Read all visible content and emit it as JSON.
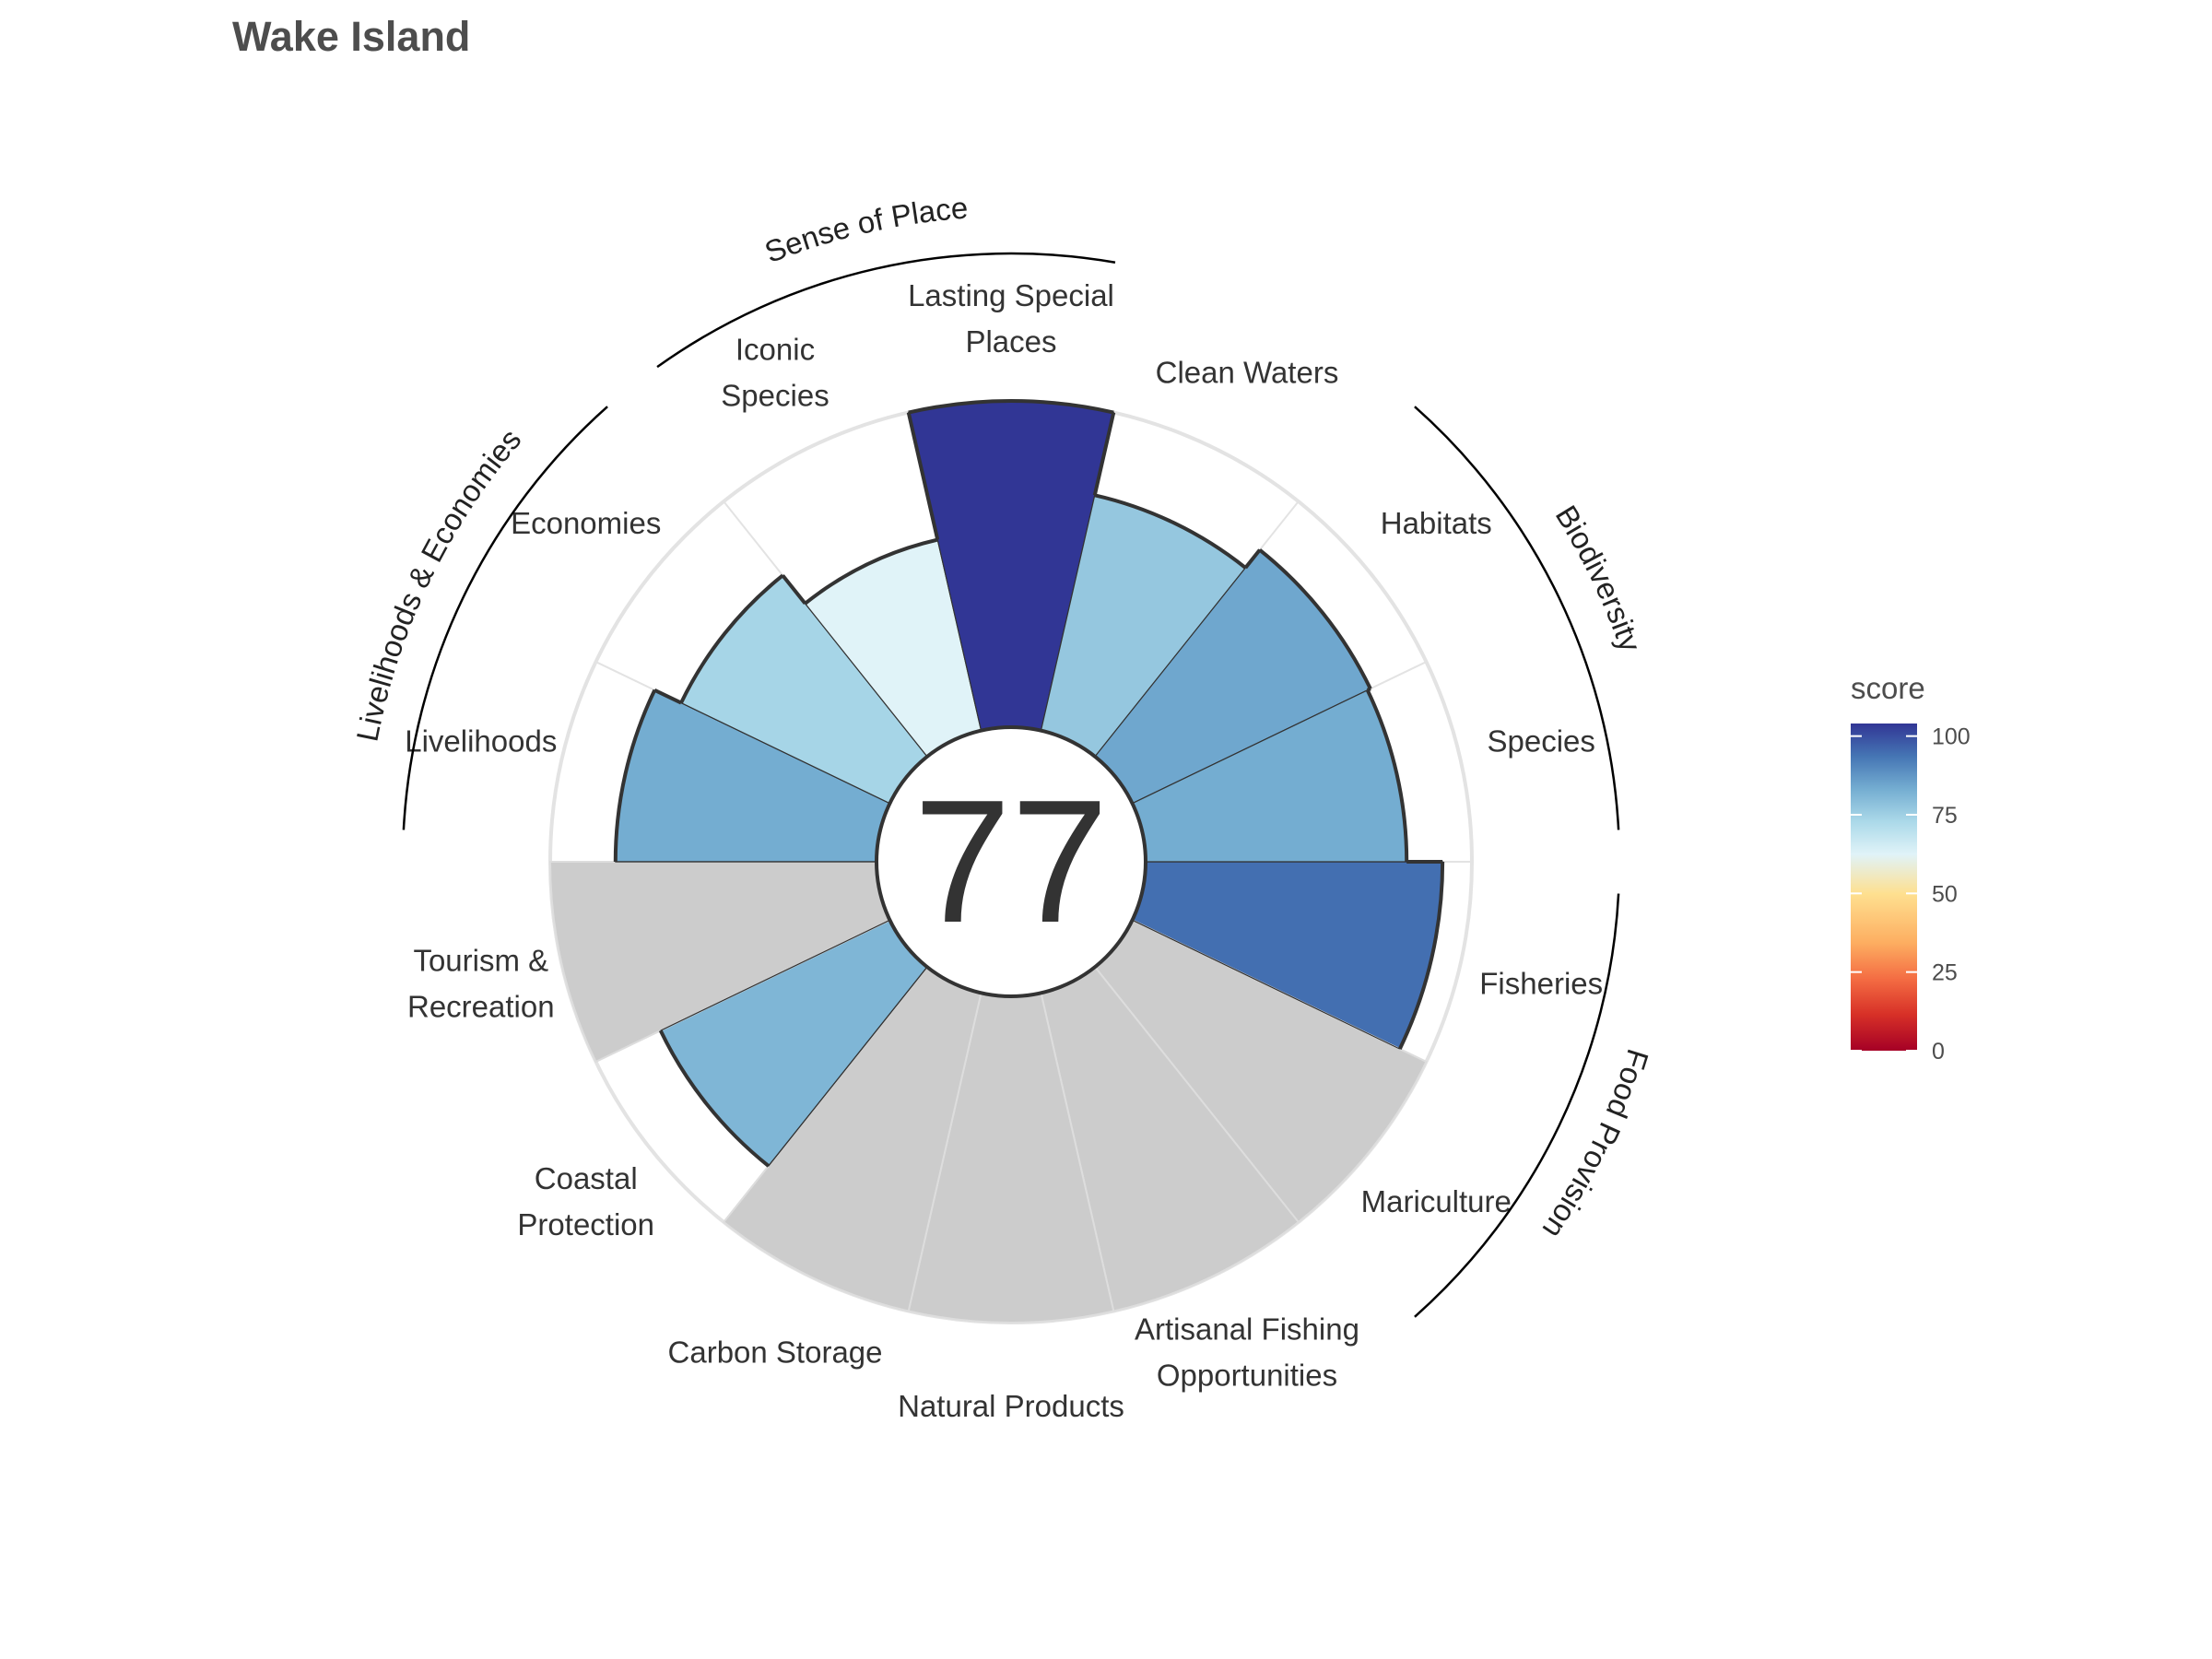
{
  "chart_data": {
    "type": "bar",
    "subtype": "polar-flower-plot",
    "title": "Wake Island",
    "center_score": "77",
    "score_range": [
      0,
      100
    ],
    "petals": [
      {
        "label": "Fisheries",
        "value": 91,
        "na": false
      },
      {
        "label": "Mariculture",
        "value": null,
        "na": true
      },
      {
        "label": "Artisanal Fishing Opportunities",
        "value": null,
        "na": true
      },
      {
        "label": "Natural Products",
        "value": null,
        "na": true
      },
      {
        "label": "Carbon Storage",
        "value": null,
        "na": true
      },
      {
        "label": "Coastal Protection",
        "value": 78,
        "na": false
      },
      {
        "label": "Tourism & Recreation",
        "value": null,
        "na": true
      },
      {
        "label": "Livelihoods",
        "value": 80,
        "na": false
      },
      {
        "label": "Economies",
        "value": 71,
        "na": false
      },
      {
        "label": "Iconic Species",
        "value": 60,
        "na": false
      },
      {
        "label": "Lasting Special Places",
        "value": 100,
        "na": false
      },
      {
        "label": "Clean Waters",
        "value": 74,
        "na": false
      },
      {
        "label": "Habitats",
        "value": 81,
        "na": false
      },
      {
        "label": "Species",
        "value": 80,
        "na": false
      }
    ],
    "groups": [
      {
        "label": "Food Provision",
        "petals": [
          "Fisheries",
          "Mariculture"
        ]
      },
      {
        "label": "Biodiversity",
        "petals": [
          "Habitats",
          "Species"
        ]
      },
      {
        "label": "Sense of Place",
        "petals": [
          "Iconic Species",
          "Lasting Special Places"
        ]
      },
      {
        "label": "Livelihoods & Economies",
        "petals": [
          "Livelihoods",
          "Economies"
        ]
      }
    ],
    "legend": {
      "title": "score",
      "ticks": [
        "0",
        "25",
        "50",
        "75",
        "100"
      ],
      "placement": "right"
    },
    "colors": {
      "na_fill": "#cccccc",
      "outline": "#333333",
      "grid": "#e3e3e3",
      "scale": [
        "#a50026",
        "#d73027",
        "#f46d43",
        "#fdae61",
        "#fee090",
        "#e0f3f8",
        "#abd9e9",
        "#74add1",
        "#4575b4",
        "#313695"
      ]
    }
  }
}
